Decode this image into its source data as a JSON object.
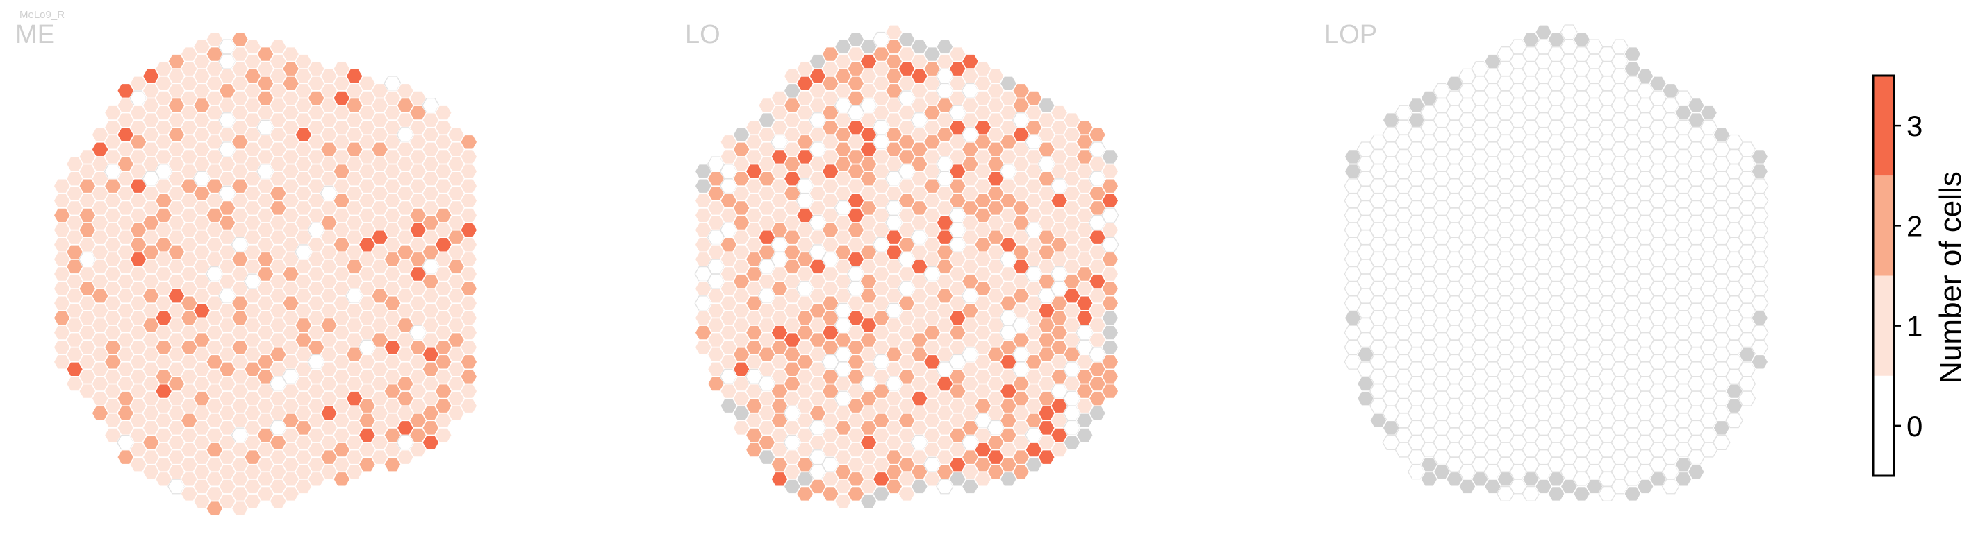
{
  "figure_tag": "MeLo9_R",
  "chart_data": {
    "type": "heatmap",
    "grid": "hexagonal",
    "panels": [
      {
        "name": "ME",
        "columns": 33,
        "max_rows_per_column": 33
      },
      {
        "name": "LO",
        "columns": 33,
        "max_rows_per_column": 33
      },
      {
        "name": "LOP",
        "columns": 33,
        "max_rows_per_column": 33
      }
    ],
    "value_distribution": {
      "ME": {
        "0": 0.04,
        "1": 0.76,
        "2": 0.17,
        "3": 0.03
      },
      "LO": {
        "0": 0.14,
        "1": 0.52,
        "2": 0.27,
        "3": 0.07
      },
      "LOP": {
        "0": 1.0,
        "1": 0.0,
        "2": 0.0,
        "3": 0.0
      }
    },
    "colorbar": {
      "label": "Number of cells",
      "ticks": [
        "0",
        "1",
        "2",
        "3"
      ],
      "range": [
        -0.5,
        3.5
      ],
      "levels": [
        {
          "value": 0,
          "color": "#ffffff"
        },
        {
          "value": 1,
          "color": "#fde3d8"
        },
        {
          "value": 2,
          "color": "#f9ac8c"
        },
        {
          "value": 3,
          "color": "#f46a4a"
        }
      ]
    },
    "edge_cell_color": "#d0d0d0",
    "empty_stroke_color": "#e2e2e2"
  }
}
